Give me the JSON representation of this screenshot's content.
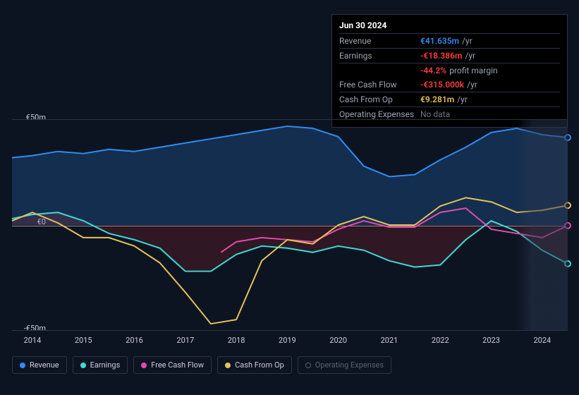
{
  "tooltip": {
    "date": "Jun 30 2024",
    "rows": [
      {
        "label": "Revenue",
        "value": "€41.635m",
        "unit": "/yr",
        "color": "#2e8df6"
      },
      {
        "label": "Earnings",
        "value": "-€18.386m",
        "unit": "/yr",
        "color": "#ff3b3b"
      },
      {
        "label": "",
        "value": "-44.2%",
        "unit": "profit margin",
        "color": "#ff3b3b"
      },
      {
        "label": "Free Cash Flow",
        "value": "-€315.000k",
        "unit": "/yr",
        "color": "#ff3b3b"
      },
      {
        "label": "Cash From Op",
        "value": "€9.281m",
        "unit": "/yr",
        "color": "#e4c15b"
      },
      {
        "label": "Operating Expenses",
        "value": "No data",
        "unit": "",
        "color": "nodata"
      }
    ]
  },
  "chart": {
    "type": "line",
    "background_color": "#0d1421",
    "grid_color": "#2a3544",
    "midline_color": "#bfc7d0",
    "ylim": [
      -50,
      50
    ],
    "ytick_labels": [
      "€50m",
      "€0",
      "-€50m"
    ],
    "x_years": [
      2014,
      2015,
      2016,
      2017,
      2018,
      2019,
      2020,
      2021,
      2022,
      2023,
      2024
    ],
    "x_range": [
      2013.6,
      2024.5
    ],
    "highlight_from": 2023.5,
    "series": [
      {
        "name": "Revenue",
        "color": "#2e8df6",
        "fill": "rgba(46,141,246,0.22)",
        "fill_to_zero": true,
        "width": 2,
        "points": [
          [
            2013.6,
            32
          ],
          [
            2014.0,
            33
          ],
          [
            2014.5,
            35
          ],
          [
            2015.0,
            34
          ],
          [
            2015.5,
            36
          ],
          [
            2016.0,
            35
          ],
          [
            2016.5,
            37
          ],
          [
            2017.0,
            39
          ],
          [
            2017.5,
            41
          ],
          [
            2018.0,
            43
          ],
          [
            2018.5,
            45
          ],
          [
            2019.0,
            47
          ],
          [
            2019.5,
            46
          ],
          [
            2020.0,
            42
          ],
          [
            2020.5,
            28
          ],
          [
            2021.0,
            23
          ],
          [
            2021.5,
            24
          ],
          [
            2022.0,
            31
          ],
          [
            2022.5,
            37
          ],
          [
            2023.0,
            44
          ],
          [
            2023.5,
            46
          ],
          [
            2024.0,
            43
          ],
          [
            2024.5,
            41.6
          ]
        ]
      },
      {
        "name": "Earnings",
        "color": "#3ddad7",
        "fill": "rgba(255,48,48,0.14)",
        "fill_to_zero": true,
        "width": 2,
        "points": [
          [
            2013.6,
            3
          ],
          [
            2014.0,
            5
          ],
          [
            2014.5,
            6
          ],
          [
            2015.0,
            2
          ],
          [
            2015.5,
            -4
          ],
          [
            2016.0,
            -7
          ],
          [
            2016.5,
            -11
          ],
          [
            2017.0,
            -22
          ],
          [
            2017.5,
            -22
          ],
          [
            2018.0,
            -14
          ],
          [
            2018.5,
            -10
          ],
          [
            2019.0,
            -11
          ],
          [
            2019.5,
            -13
          ],
          [
            2020.0,
            -10
          ],
          [
            2020.5,
            -12
          ],
          [
            2021.0,
            -17
          ],
          [
            2021.5,
            -20
          ],
          [
            2022.0,
            -19
          ],
          [
            2022.5,
            -7
          ],
          [
            2023.0,
            2
          ],
          [
            2023.5,
            -3
          ],
          [
            2024.0,
            -12
          ],
          [
            2024.5,
            -18.4
          ]
        ]
      },
      {
        "name": "Free Cash Flow",
        "color": "#e64aa9",
        "fill": null,
        "fill_to_zero": false,
        "width": 2,
        "points": [
          [
            2017.7,
            -13
          ],
          [
            2018.0,
            -8
          ],
          [
            2018.5,
            -6
          ],
          [
            2019.0,
            -7
          ],
          [
            2019.5,
            -8
          ],
          [
            2020.0,
            -2
          ],
          [
            2020.5,
            2
          ],
          [
            2021.0,
            -1
          ],
          [
            2021.5,
            -1
          ],
          [
            2022.0,
            6
          ],
          [
            2022.5,
            8
          ],
          [
            2023.0,
            -2
          ],
          [
            2023.5,
            -4
          ],
          [
            2024.0,
            -6
          ],
          [
            2024.5,
            -0.3
          ]
        ]
      },
      {
        "name": "Cash From Op",
        "color": "#e4c15b",
        "fill": null,
        "fill_to_zero": false,
        "width": 2,
        "points": [
          [
            2013.6,
            2
          ],
          [
            2014.0,
            6
          ],
          [
            2014.5,
            1
          ],
          [
            2015.0,
            -6
          ],
          [
            2015.5,
            -6
          ],
          [
            2016.0,
            -10
          ],
          [
            2016.5,
            -18
          ],
          [
            2017.0,
            -32
          ],
          [
            2017.5,
            -47
          ],
          [
            2018.0,
            -45
          ],
          [
            2018.5,
            -17
          ],
          [
            2019.0,
            -7
          ],
          [
            2019.5,
            -9
          ],
          [
            2020.0,
            0
          ],
          [
            2020.5,
            4
          ],
          [
            2021.0,
            0
          ],
          [
            2021.5,
            0
          ],
          [
            2022.0,
            9
          ],
          [
            2022.5,
            13
          ],
          [
            2023.0,
            11
          ],
          [
            2023.5,
            6
          ],
          [
            2024.0,
            7
          ],
          [
            2024.5,
            9.3
          ]
        ]
      }
    ],
    "legend": [
      {
        "label": "Revenue",
        "color": "#2e8df6",
        "on": true
      },
      {
        "label": "Earnings",
        "color": "#3ddad7",
        "on": true
      },
      {
        "label": "Free Cash Flow",
        "color": "#e64aa9",
        "on": true
      },
      {
        "label": "Cash From Op",
        "color": "#e4c15b",
        "on": true
      },
      {
        "label": "Operating Expenses",
        "color": "#56606e",
        "on": false
      }
    ],
    "label_fontsize": 11
  }
}
